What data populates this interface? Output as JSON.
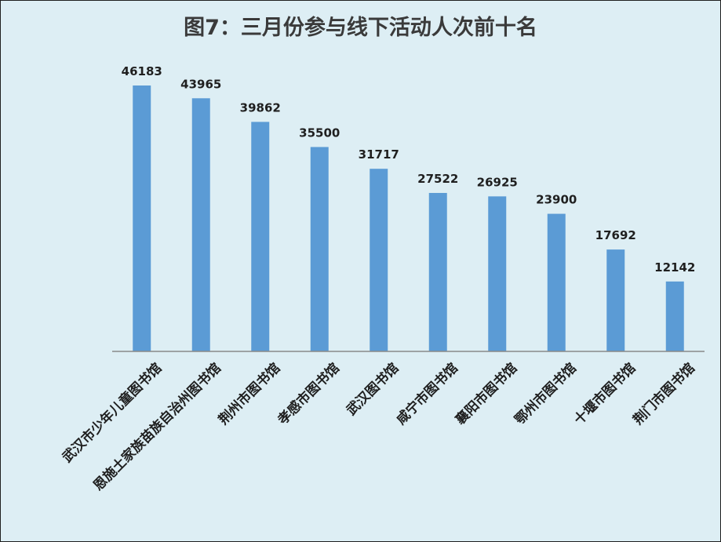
{
  "chart_data": {
    "type": "bar",
    "title": "图7：三月份参与线下活动人次前十名",
    "categories": [
      "武汉市少年儿童图书馆",
      "恩施土家族苗族自治州图书馆",
      "荆州市图书馆",
      "孝感市图书馆",
      "武汉图书馆",
      "咸宁市图书馆",
      "襄阳市图书馆",
      "鄂州市图书馆",
      "十堰市图书馆",
      "荆门市图书馆"
    ],
    "values": [
      46183,
      43965,
      39862,
      35500,
      31717,
      27522,
      26925,
      23900,
      17692,
      12142
    ],
    "ylim": [
      0,
      46183
    ],
    "grid": false,
    "legend": "none",
    "data_labels": true,
    "bar_color": "#5b9bd5",
    "background_color": "#ddeef4"
  }
}
